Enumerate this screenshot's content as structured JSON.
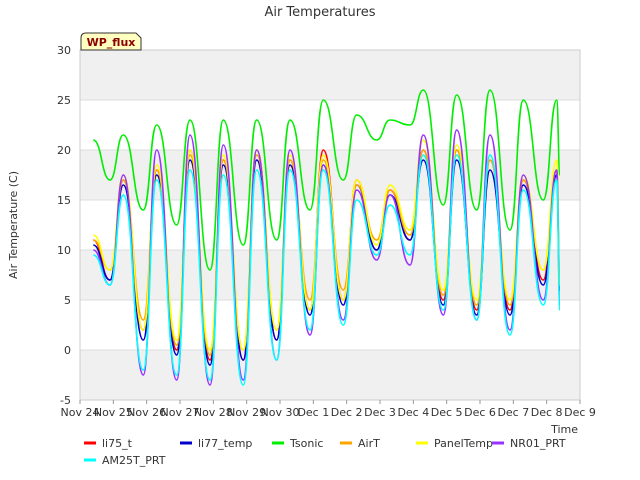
{
  "chart_data": {
    "type": "line",
    "title": "Air Temperatures",
    "xlabel": "Time",
    "ylabel": "Air Temperature (C)",
    "ylim": [
      -5,
      30
    ],
    "yticks": [
      -5,
      0,
      5,
      10,
      15,
      20,
      25,
      30
    ],
    "xlim": [
      0,
      15
    ],
    "xtick_labels": [
      "Nov 24",
      "Nov 25",
      "Nov 26",
      "Nov 27",
      "Nov 28",
      "Nov 29",
      "Nov 30",
      "Dec 1",
      "Dec 2",
      "Dec 3",
      "Dec 4",
      "Dec 5",
      "Dec 6",
      "Dec 7",
      "Dec 8",
      "Dec 9"
    ],
    "background_bands": "alternating light gray horizontal bands",
    "legend_position": "bottom",
    "annotation": "WP_flux",
    "x_days": [
      0.4,
      0.9,
      1.3,
      1.9,
      2.3,
      2.9,
      3.3,
      3.9,
      4.3,
      4.9,
      5.3,
      5.9,
      6.3,
      6.9,
      7.3,
      7.9,
      8.3,
      8.9,
      9.3,
      9.9,
      10.3,
      10.9,
      11.3,
      11.9,
      12.3,
      12.9,
      13.3,
      13.9,
      14.3,
      14.4
    ],
    "series": [
      {
        "name": "li75_t",
        "color": "#ff0000",
        "values": [
          11,
          7,
          17,
          2,
          18,
          0,
          20,
          -1,
          19,
          -1,
          20,
          1,
          19,
          4,
          20,
          5,
          17,
          10,
          16,
          11,
          20,
          5,
          20,
          4,
          19,
          4,
          17,
          7,
          18,
          6
        ]
      },
      {
        "name": "li77_temp",
        "color": "#0000cc",
        "values": [
          10.5,
          7,
          16.5,
          1,
          17.5,
          -0.5,
          19,
          -1.5,
          18.5,
          -1,
          19,
          1,
          18.5,
          3.5,
          18.5,
          4.5,
          16.5,
          10,
          15.5,
          11,
          19,
          4.5,
          19,
          3.5,
          18,
          3.5,
          16.5,
          6.5,
          17.5,
          6
        ]
      },
      {
        "name": "Tsonic",
        "color": "#00ee00",
        "values": [
          21,
          17,
          21.5,
          14,
          22.5,
          12.5,
          23,
          8,
          23,
          10.5,
          23,
          11,
          23,
          14,
          25,
          17,
          23.5,
          21,
          23,
          22.5,
          26,
          14.5,
          25.5,
          14,
          26,
          12,
          25,
          15,
          25,
          17.5
        ]
      },
      {
        "name": "AirT",
        "color": "#ffa500",
        "values": [
          11,
          8,
          17,
          3,
          18,
          0.5,
          19.5,
          -0.5,
          19,
          0,
          19.5,
          2,
          19,
          5,
          19,
          6,
          16.5,
          11,
          16,
          11.5,
          20,
          5.5,
          20,
          4.5,
          19,
          4.5,
          17,
          8,
          18,
          6.5
        ]
      },
      {
        "name": "PanelTemp",
        "color": "#ffff00",
        "values": [
          11.5,
          8,
          17.5,
          2,
          18.5,
          1,
          20,
          0,
          19.5,
          0,
          20,
          2,
          19.5,
          4,
          19.5,
          5,
          17,
          10.5,
          16.5,
          12,
          21,
          6,
          20.5,
          5,
          19.5,
          5,
          17.5,
          8,
          19,
          6.5
        ]
      },
      {
        "name": "NR01_PRT",
        "color": "#9933ff",
        "values": [
          10,
          6.5,
          17.5,
          -2.5,
          20,
          -3,
          21.5,
          -3.5,
          20.5,
          -3,
          20,
          -1,
          20,
          1.5,
          18.5,
          3,
          16,
          9,
          15.5,
          8.5,
          21.5,
          3.5,
          22,
          3,
          21.5,
          2,
          17.5,
          5,
          18,
          4.5
        ]
      },
      {
        "name": "AM25T_PRT",
        "color": "#00ffff",
        "values": [
          9.5,
          6.5,
          15.5,
          -2,
          17,
          -2.5,
          18,
          -3,
          17.5,
          -3.5,
          18,
          -1,
          18,
          2,
          18,
          2.5,
          15,
          9.5,
          14.5,
          9.5,
          19.5,
          4,
          19.5,
          3,
          19.5,
          1.5,
          16,
          4.5,
          17,
          4
        ]
      }
    ]
  }
}
